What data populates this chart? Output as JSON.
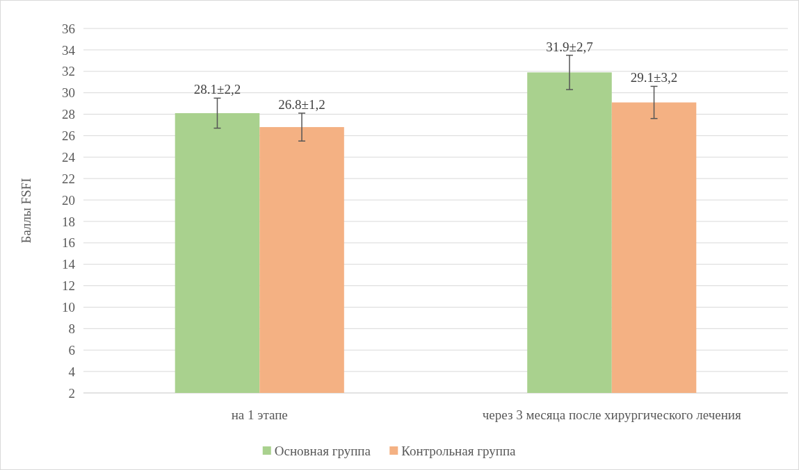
{
  "chart_data": {
    "type": "bar",
    "ylabel": "Баллы FSFI",
    "categories": [
      "на 1 этапе",
      "через 3 месяца после хирургического лечения"
    ],
    "series": [
      {
        "name": "Основная группа",
        "color": "#a9d18e",
        "values": [
          28.1,
          31.9
        ],
        "errors": [
          1.4,
          1.6
        ],
        "value_labels": [
          "28.1±2,2",
          "31.9±2,7"
        ]
      },
      {
        "name": "Контрольная группа",
        "color": "#f4b183",
        "values": [
          26.8,
          29.1
        ],
        "errors": [
          1.3,
          1.5
        ],
        "value_labels": [
          "26.8±1,2",
          "29.1±3,2"
        ]
      }
    ],
    "ylim": [
      2,
      36
    ],
    "yticks": [
      2,
      4,
      6,
      8,
      10,
      12,
      14,
      16,
      18,
      20,
      22,
      24,
      26,
      28,
      30,
      32,
      34,
      36
    ],
    "grid": "y",
    "legend": "bottom"
  }
}
